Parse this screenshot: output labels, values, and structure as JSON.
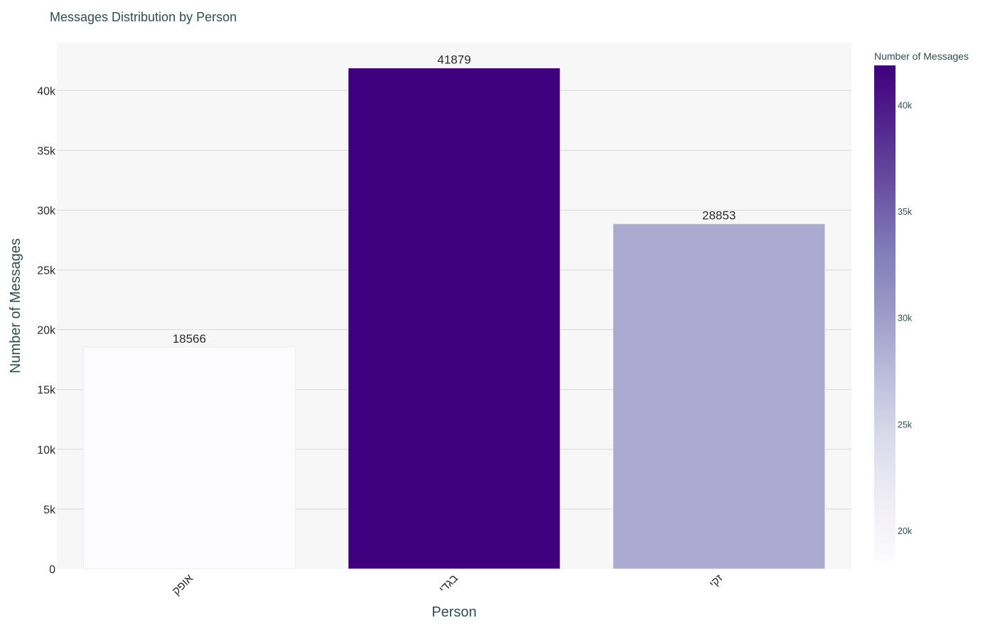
{
  "chart_data": {
    "type": "bar",
    "title": "Messages Distribution by Person",
    "xlabel": "Person",
    "ylabel": "Number of Messages",
    "categories": [
      "אופק",
      "בגדי",
      "זקי"
    ],
    "values": [
      18566,
      41879,
      28853
    ],
    "data_labels": [
      "18566",
      "41879",
      "28853"
    ],
    "ylim": [
      0,
      44000
    ],
    "y_ticks": [
      0,
      5000,
      10000,
      15000,
      20000,
      25000,
      30000,
      35000,
      40000
    ],
    "y_tick_labels": [
      "0",
      "5k",
      "10k",
      "15k",
      "20k",
      "25k",
      "30k",
      "35k",
      "40k"
    ],
    "grid": true,
    "plot_background": "#f7f7f7",
    "gridline_color": "#d9d9d9",
    "colorscale": {
      "name": "Purples",
      "low_color": "#fcfbfd",
      "high_color": "#3f007d",
      "stops": [
        "#fcfbfd",
        "#efedf5",
        "#dadaeb",
        "#bcbddc",
        "#9e9ac8",
        "#807dba",
        "#6a51a3",
        "#54278f",
        "#3f007d"
      ]
    },
    "colorbar": {
      "title": "Number of Messages",
      "range": [
        18566,
        41879
      ],
      "ticks": [
        20000,
        25000,
        30000,
        35000,
        40000
      ],
      "tick_labels": [
        "20k",
        "25k",
        "30k",
        "35k",
        "40k"
      ]
    }
  }
}
